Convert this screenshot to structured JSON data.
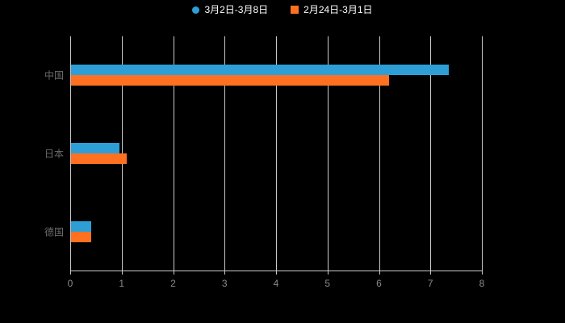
{
  "legend": {
    "items": [
      {
        "label": "3月2日-3月8日",
        "marker": "circle",
        "color": "#2E9FD6"
      },
      {
        "label": "2月24日-3月1日",
        "marker": "square",
        "color": "#FF7121"
      }
    ]
  },
  "chart_data": {
    "type": "bar",
    "orientation": "horizontal",
    "title": "",
    "categories": [
      "中国",
      "日本",
      "德国"
    ],
    "series": [
      {
        "name": "3月2日-3月8日",
        "color": "#2E9FD6",
        "values": [
          7.35,
          0.95,
          0.4
        ]
      },
      {
        "name": "2月24日-3月1日",
        "color": "#FF7121",
        "values": [
          6.2,
          1.1,
          0.4
        ]
      }
    ],
    "xlabel": "",
    "ylabel": "",
    "xlim": [
      0,
      8
    ],
    "xticks": [
      0,
      1,
      2,
      3,
      4,
      5,
      6,
      7,
      8
    ],
    "grid": true,
    "legend_position": "top"
  },
  "colors": {
    "background": "#000000",
    "gridline": "#c9c9c9",
    "axis_line": "#c9c9c9",
    "tick_label": "#8a8a8a",
    "category_label": "#6b6b6b"
  }
}
